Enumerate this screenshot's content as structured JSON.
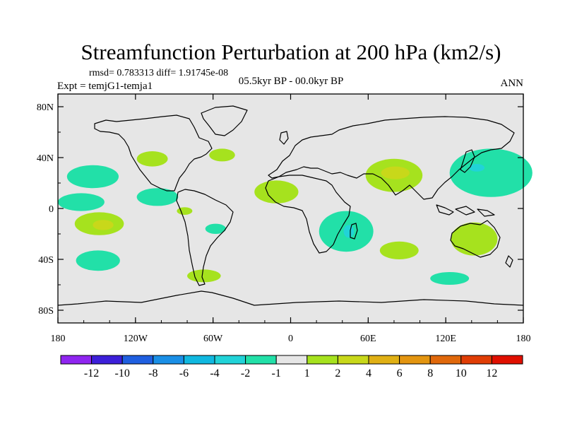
{
  "chart_data": {
    "type": "heatmap",
    "title": "Streamfunction Perturbation at 200 hPa (km2/s)",
    "stats_line": "rmsd= 0.783313 diff= 1.91745e-08",
    "experiment_label": "Expt = temjG1-temja1",
    "period_label": "05.5kyr BP - 00.0kyr BP",
    "season_label": "ANN",
    "xlim": [
      -180,
      180
    ],
    "ylim": [
      -90,
      90
    ],
    "x_ticks": [
      {
        "value": -180,
        "label": "180"
      },
      {
        "value": -120,
        "label": "120W"
      },
      {
        "value": -60,
        "label": "60W"
      },
      {
        "value": 0,
        "label": "0"
      },
      {
        "value": 60,
        "label": "60E"
      },
      {
        "value": 120,
        "label": "120E"
      },
      {
        "value": 180,
        "label": "180"
      }
    ],
    "y_ticks": [
      {
        "value": 80,
        "label": "80N"
      },
      {
        "value": 40,
        "label": "40N"
      },
      {
        "value": 0,
        "label": "0"
      },
      {
        "value": -40,
        "label": "40S"
      },
      {
        "value": -80,
        "label": "80S"
      }
    ],
    "colorbar": {
      "colors": [
        "#8f25f0",
        "#3c1fd9",
        "#1f5fe0",
        "#1a8fe6",
        "#10b8e0",
        "#21d3d8",
        "#22e0a8",
        "#e6e6e6",
        "#a6e21e",
        "#c8d81a",
        "#e0b014",
        "#e39510",
        "#e0680b",
        "#e03d05",
        "#e00f00"
      ],
      "levels": [
        -12,
        -10,
        -8,
        -6,
        -4,
        -2,
        -1,
        1,
        2,
        4,
        6,
        8,
        10,
        12
      ]
    },
    "regions": [
      {
        "lon": -153,
        "lat": 25,
        "rlon": 20,
        "rlat": 9,
        "level": "-2"
      },
      {
        "lon": -162,
        "lat": 5,
        "rlon": 18,
        "rlat": 7,
        "level": "-2"
      },
      {
        "lon": -107,
        "lat": 39,
        "rlon": 12,
        "rlat": 6,
        "level": "2"
      },
      {
        "lon": -103,
        "lat": 9,
        "rlon": 16,
        "rlat": 7,
        "level": "-2"
      },
      {
        "lon": -82,
        "lat": -2,
        "rlon": 6,
        "rlat": 3,
        "level": "2"
      },
      {
        "lon": -53,
        "lat": 42,
        "rlon": 10,
        "rlat": 5,
        "level": "2"
      },
      {
        "lon": -148,
        "lat": -12,
        "rlon": 19,
        "rlat": 9,
        "level": "2"
      },
      {
        "lon": -145,
        "lat": -13,
        "rlon": 8,
        "rlat": 4,
        "level": "4"
      },
      {
        "lon": -149,
        "lat": -41,
        "rlon": 17,
        "rlat": 8,
        "level": "-2"
      },
      {
        "lon": -58,
        "lat": -16,
        "rlon": 8,
        "rlat": 4,
        "level": "-2"
      },
      {
        "lon": -67,
        "lat": -53,
        "rlon": 13,
        "rlat": 5,
        "level": "2"
      },
      {
        "lon": -11,
        "lat": 13,
        "rlon": 17,
        "rlat": 9,
        "level": "2"
      },
      {
        "lon": 43,
        "lat": -18,
        "rlon": 21,
        "rlat": 16,
        "level": "-2"
      },
      {
        "lon": 45,
        "lat": -18,
        "rlon": 4,
        "rlat": 5,
        "level": "-4"
      },
      {
        "lon": 80,
        "lat": 26,
        "rlon": 22,
        "rlat": 13,
        "level": "2"
      },
      {
        "lon": 81,
        "lat": 28,
        "rlon": 11,
        "rlat": 5,
        "level": "4"
      },
      {
        "lon": 84,
        "lat": -33,
        "rlon": 15,
        "rlat": 7,
        "level": "2"
      },
      {
        "lon": 155,
        "lat": 28,
        "rlon": 32,
        "rlat": 19,
        "level": "-2"
      },
      {
        "lon": 144,
        "lat": 32,
        "rlon": 6,
        "rlat": 3,
        "level": "-4"
      },
      {
        "lon": 142,
        "lat": -24,
        "rlon": 18,
        "rlat": 13,
        "level": "2"
      },
      {
        "lon": 123,
        "lat": -55,
        "rlon": 15,
        "rlat": 5,
        "level": "-2"
      }
    ]
  }
}
